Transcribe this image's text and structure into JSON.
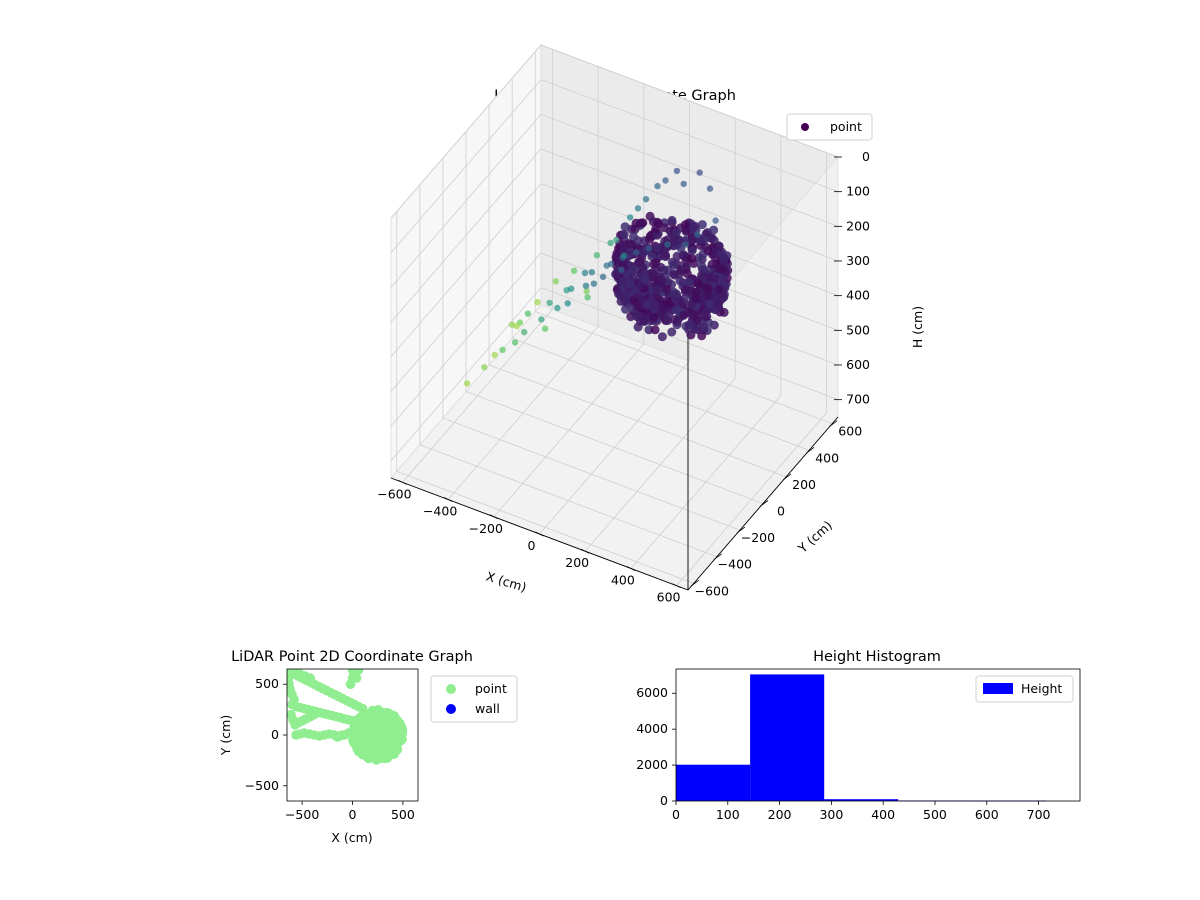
{
  "chart_data": [
    {
      "type": "scatter3d",
      "title": "LiDAR Point 3D Coordinate Graph",
      "xlabel": "X (cm)",
      "ylabel": "Y (cm)",
      "zlabel": "H (cm)",
      "xlim": [
        -650,
        650
      ],
      "ylim": [
        -650,
        650
      ],
      "zlim": [
        0,
        750
      ],
      "z_inverted": true,
      "xticks": [
        -600,
        -400,
        -200,
        0,
        200,
        400,
        600
      ],
      "yticks": [
        -600,
        -400,
        -200,
        0,
        200,
        400,
        600
      ],
      "zticks": [
        0,
        100,
        200,
        300,
        400,
        500,
        600,
        700
      ],
      "colormap": "viridis",
      "legend": {
        "labels": [
          "point"
        ],
        "placement": "top-right"
      },
      "grid": true,
      "dense_ring": {
        "center": [
          250,
          0
        ],
        "radius": 210,
        "h_range": [
          150,
          250
        ]
      },
      "outliers": [
        {
          "x": -620,
          "y": 560,
          "h": 700
        },
        {
          "x": -560,
          "y": 600,
          "h": 640
        },
        {
          "x": -490,
          "y": 620,
          "h": 600
        },
        {
          "x": -430,
          "y": 610,
          "h": 640
        },
        {
          "x": -380,
          "y": 600,
          "h": 520
        },
        {
          "x": -330,
          "y": 620,
          "h": 480
        },
        {
          "x": -290,
          "y": 590,
          "h": 450
        },
        {
          "x": -240,
          "y": 610,
          "h": 380
        },
        {
          "x": -200,
          "y": 600,
          "h": 340
        },
        {
          "x": -160,
          "y": 590,
          "h": 300
        },
        {
          "x": -120,
          "y": 610,
          "h": 260
        },
        {
          "x": -80,
          "y": 600,
          "h": 230
        },
        {
          "x": -40,
          "y": 620,
          "h": 200
        },
        {
          "x": 0,
          "y": 600,
          "h": 220
        },
        {
          "x": 60,
          "y": 620,
          "h": 180
        },
        {
          "x": 110,
          "y": 610,
          "h": 210
        },
        {
          "x": -600,
          "y": 300,
          "h": 660
        },
        {
          "x": -540,
          "y": 250,
          "h": 620
        },
        {
          "x": -480,
          "y": 200,
          "h": 560
        },
        {
          "x": -420,
          "y": 230,
          "h": 600
        },
        {
          "x": -360,
          "y": 150,
          "h": 480
        },
        {
          "x": -300,
          "y": 180,
          "h": 440
        },
        {
          "x": -250,
          "y": 120,
          "h": 400
        },
        {
          "x": -200,
          "y": 140,
          "h": 350
        },
        {
          "x": -150,
          "y": 100,
          "h": 320
        },
        {
          "x": -100,
          "y": 130,
          "h": 300
        },
        {
          "x": -60,
          "y": 90,
          "h": 270
        },
        {
          "x": -20,
          "y": 110,
          "h": 250
        },
        {
          "x": 20,
          "y": 150,
          "h": 240
        },
        {
          "x": 60,
          "y": 180,
          "h": 230
        },
        {
          "x": -620,
          "y": -50,
          "h": 700
        },
        {
          "x": -560,
          "y": -20,
          "h": 650
        },
        {
          "x": -500,
          "y": 20,
          "h": 600
        },
        {
          "x": -440,
          "y": 10,
          "h": 560
        },
        {
          "x": -380,
          "y": -30,
          "h": 500
        },
        {
          "x": -320,
          "y": 0,
          "h": 460
        },
        {
          "x": -260,
          "y": 20,
          "h": 420
        },
        {
          "x": -200,
          "y": -10,
          "h": 380
        },
        {
          "x": -140,
          "y": 30,
          "h": 330
        },
        {
          "x": -90,
          "y": 0,
          "h": 300
        },
        {
          "x": -40,
          "y": -20,
          "h": 260
        },
        {
          "x": 10,
          "y": 40,
          "h": 250
        },
        {
          "x": -640,
          "y": 420,
          "h": 720
        },
        {
          "x": -600,
          "y": 150,
          "h": 690
        },
        {
          "x": -330,
          "y": 420,
          "h": 560
        },
        {
          "x": -150,
          "y": 380,
          "h": 380
        },
        {
          "x": 40,
          "y": 380,
          "h": 300
        },
        {
          "x": 150,
          "y": 420,
          "h": 260
        },
        {
          "x": 200,
          "y": 480,
          "h": 230
        },
        {
          "x": 160,
          "y": 300,
          "h": 240
        }
      ]
    },
    {
      "type": "scatter",
      "title": "LiDAR Point 2D Coordinate Graph",
      "xlabel": "X (cm)",
      "ylabel": "Y (cm)",
      "xlim": [
        -650,
        650
      ],
      "ylim": [
        -650,
        650
      ],
      "xticks": [
        -500,
        0,
        500
      ],
      "yticks": [
        -500,
        0,
        500
      ],
      "legend": {
        "labels": [
          "point",
          "wall"
        ],
        "placement": "right"
      },
      "series": [
        {
          "name": "point",
          "color": "#90ee90",
          "blob_center": [
            250,
            0
          ],
          "blob_radius": 250,
          "x": [
            -620,
            -580,
            -540,
            -500,
            -460,
            -420,
            -380,
            -340,
            -300,
            -260,
            -220,
            -180,
            -140,
            -100,
            -60,
            -20,
            20,
            60,
            100,
            -600,
            -560,
            -520,
            -480,
            -440,
            -400,
            -360,
            -320,
            -280,
            -240,
            -200,
            -160,
            -120,
            -80,
            -40,
            0,
            40,
            -560,
            -520,
            -480,
            -430,
            -380,
            -330,
            -280,
            -230,
            -180,
            -130,
            -80,
            -620,
            -600,
            -580,
            -610,
            -590,
            -570,
            -540,
            -500,
            -460,
            -420,
            -380,
            -640,
            -630,
            -600,
            -580,
            -520,
            -470,
            -420,
            -150,
            -100,
            -40,
            -20,
            0,
            20,
            60,
            0,
            20,
            40
          ],
          "y": [
            620,
            600,
            580,
            560,
            540,
            520,
            500,
            480,
            460,
            440,
            420,
            400,
            380,
            360,
            340,
            320,
            300,
            280,
            260,
            300,
            280,
            270,
            260,
            250,
            240,
            230,
            220,
            210,
            200,
            190,
            180,
            170,
            160,
            150,
            140,
            130,
            0,
            10,
            20,
            10,
            0,
            -10,
            0,
            10,
            0,
            -10,
            0,
            450,
            400,
            350,
            200,
            150,
            100,
            120,
            140,
            160,
            180,
            200,
            550,
            500,
            620,
            640,
            600,
            580,
            560,
            -20,
            0,
            20,
            500,
            560,
            600,
            640,
            640,
            600,
            560
          ]
        },
        {
          "name": "wall",
          "color": "#0000ff",
          "x": [],
          "y": []
        }
      ]
    },
    {
      "type": "bar",
      "title": "Height Histogram",
      "xlabel": "",
      "ylabel": "",
      "xlim": [
        0,
        780
      ],
      "ylim": [
        0,
        7350
      ],
      "xticks": [
        0,
        100,
        200,
        300,
        400,
        500,
        600,
        700
      ],
      "yticks": [
        0,
        2000,
        4000,
        6000
      ],
      "legend": {
        "labels": [
          "Height"
        ],
        "placement": "top-right"
      },
      "series": [
        {
          "name": "Height",
          "color": "#0000ff",
          "bins": [
            0,
            143,
            286,
            429,
            572,
            715
          ],
          "values": [
            2020,
            7050,
            100,
            30,
            20
          ]
        }
      ]
    }
  ]
}
